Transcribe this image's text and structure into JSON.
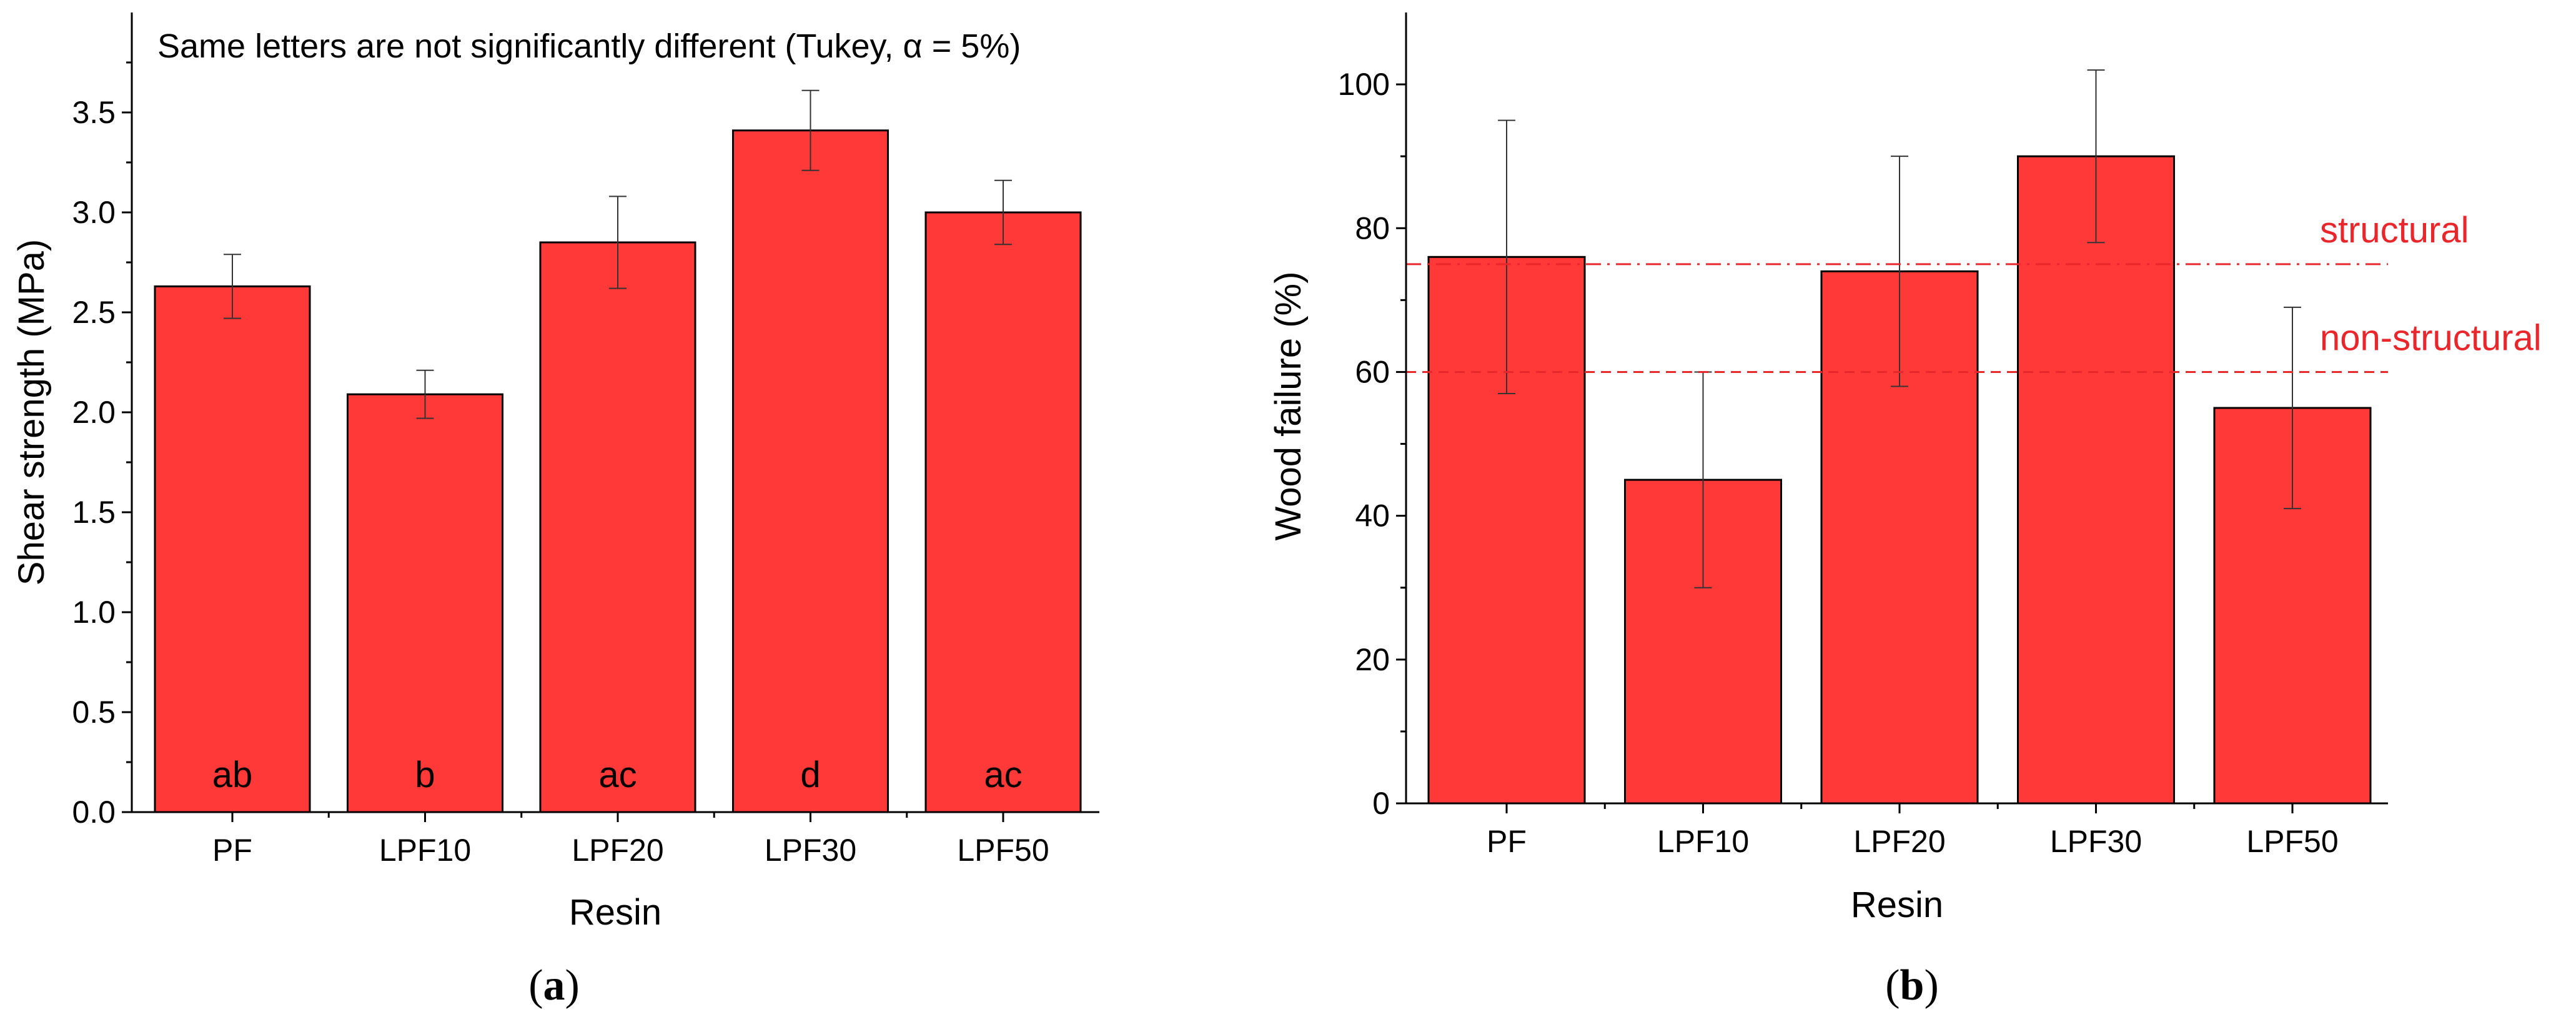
{
  "chart_data": [
    {
      "type": "bar",
      "panel_label": "a",
      "title": "",
      "note": "Same letters are not significantly different (Tukey, α = 5%)",
      "xlabel": "Resin",
      "ylabel": "Shear strength (MPa)",
      "categories": [
        "PF",
        "LPF10",
        "LPF20",
        "LPF30",
        "LPF50"
      ],
      "values": [
        2.63,
        2.09,
        2.85,
        3.41,
        3.0
      ],
      "error_low": [
        2.47,
        1.97,
        2.62,
        3.21,
        2.84
      ],
      "error_high": [
        2.79,
        2.21,
        3.08,
        3.61,
        3.16
      ],
      "letters": [
        "ab",
        "b",
        "ac",
        "d",
        "ac"
      ],
      "ylim": [
        0,
        4.0
      ],
      "yticks": [
        "0.0",
        "0.5",
        "1.0",
        "1.5",
        "2.0",
        "2.5",
        "3.0",
        "3.5"
      ],
      "bar_color": "#ff3838",
      "grid": false
    },
    {
      "type": "bar",
      "panel_label": "b",
      "title": "",
      "xlabel": "Resin",
      "ylabel": "Wood failure (%)",
      "categories": [
        "PF",
        "LPF10",
        "LPF20",
        "LPF30",
        "LPF50"
      ],
      "values": [
        76,
        45,
        74,
        90,
        55
      ],
      "error_low": [
        57,
        30,
        58,
        78,
        41
      ],
      "error_high": [
        95,
        60,
        90,
        102,
        69
      ],
      "ylim": [
        0,
        110
      ],
      "yticks": [
        "0",
        "20",
        "40",
        "60",
        "80",
        "100"
      ],
      "reference_lines": [
        {
          "label": "structural",
          "value": 75,
          "style": "dash-dot"
        },
        {
          "label": "non-structural",
          "value": 60,
          "style": "dashed"
        }
      ],
      "reference_color": "#e8262b",
      "bar_color": "#ff3838",
      "grid": false
    }
  ]
}
